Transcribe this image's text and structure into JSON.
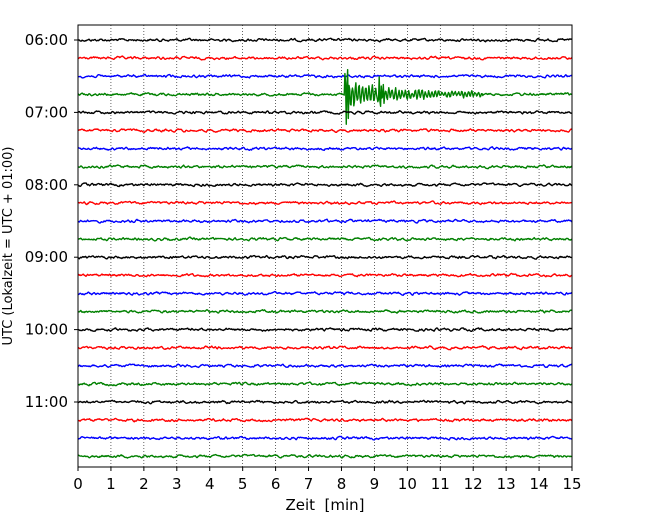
{
  "chart_data": {
    "type": "line",
    "title": "",
    "xlabel": "Zeit  [min]",
    "ylabel": "UTC (Lokalzeit = UTC + 01:00)",
    "xlim": [
      0,
      15
    ],
    "x_ticks": [
      0,
      1,
      2,
      3,
      4,
      5,
      6,
      7,
      8,
      9,
      10,
      11,
      12,
      13,
      14,
      15
    ],
    "y_tick_labels": [
      "06:00",
      "07:00",
      "08:00",
      "09:00",
      "10:00",
      "11:00"
    ],
    "trace_start": "06:00",
    "trace_interval_min": 15,
    "trace_count": 24,
    "trace_colors": [
      "#000000",
      "#ff0000",
      "#0000ff",
      "#008000"
    ],
    "grid": {
      "x": true,
      "style": "dotted"
    },
    "event": {
      "trace_time": "06:45",
      "onset_min": 8.1,
      "secondary_min": 9.2,
      "decay_end_min": 12.3,
      "color": "#008000"
    }
  }
}
